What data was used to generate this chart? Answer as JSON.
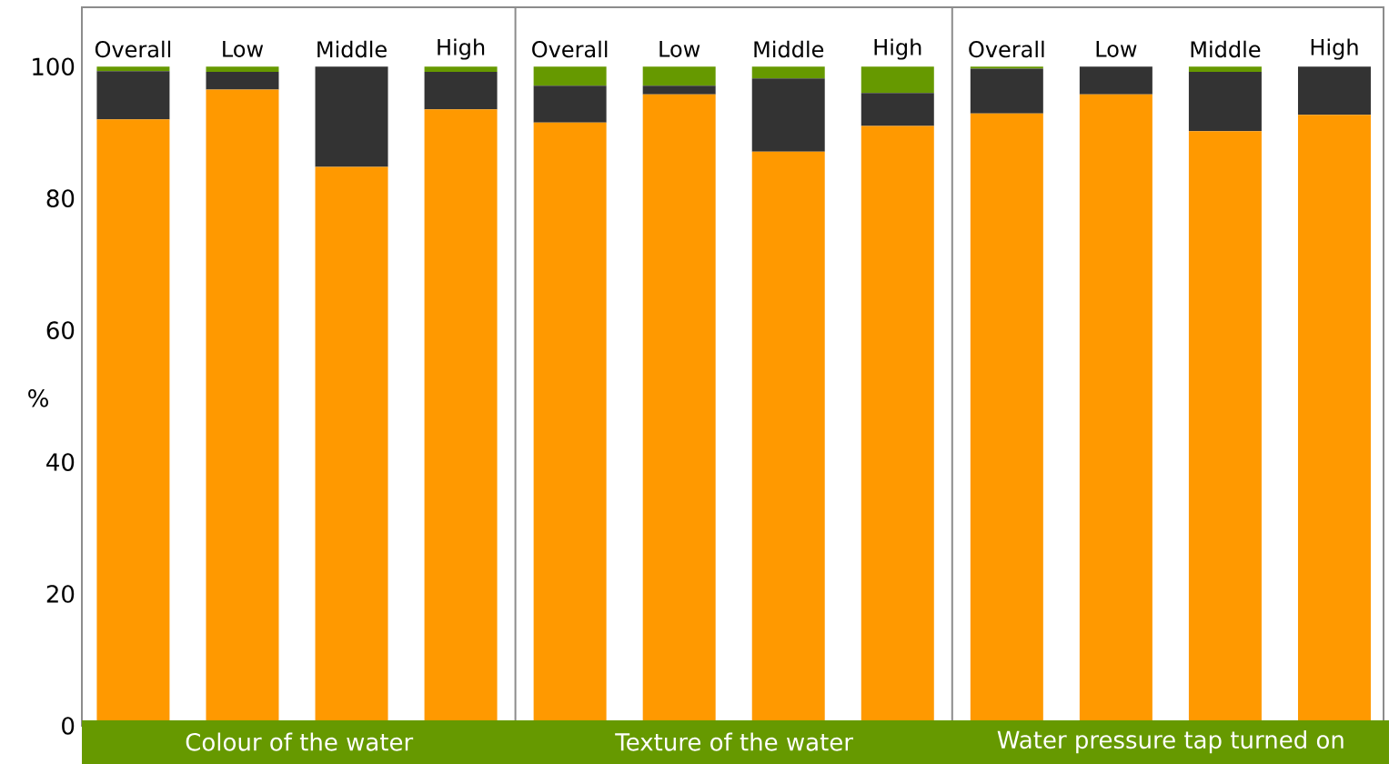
{
  "chart_data": {
    "type": "bar",
    "stacked": true,
    "ylabel": "%",
    "categories": [
      "Overall",
      "Low",
      "Middle",
      "High",
      "Overall",
      "Low",
      "Middle",
      "High",
      "Overall",
      "Low",
      "Middle",
      "High"
    ],
    "series": [
      {
        "color": "#ff9900",
        "values": [
          92.0,
          96.5,
          84.8,
          93.5,
          91.5,
          95.8,
          87.1,
          91.0,
          92.9,
          95.8,
          90.2,
          92.7
        ]
      },
      {
        "color": "#333333",
        "values": [
          7.3,
          2.7,
          15.2,
          5.7,
          5.6,
          1.3,
          11.1,
          5.0,
          6.8,
          4.2,
          9.0,
          7.3
        ]
      },
      {
        "color": "#669900",
        "values": [
          0.7,
          0.8,
          0.0,
          0.8,
          2.9,
          2.9,
          1.8,
          4.0,
          0.3,
          0.0,
          0.8,
          0.0
        ]
      }
    ],
    "ylim": [
      0,
      109
    ],
    "yticks": [
      0,
      20,
      40,
      60,
      80,
      100
    ],
    "annotations": [
      "Colour of the water",
      "Texture of the water",
      "Water pressure tap turned on"
    ]
  }
}
